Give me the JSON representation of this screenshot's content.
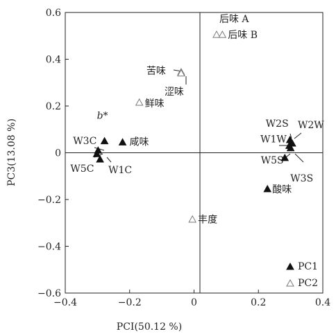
{
  "chart_data": {
    "type": "scatter",
    "xlabel": "PCI(50.12 %)",
    "ylabel": "PC3(13.08 %)",
    "xlim": [
      -0.4,
      0.4
    ],
    "ylim": [
      -0.6,
      0.6
    ],
    "xticks": [
      "−0.4",
      "−0.2",
      "0",
      "0.2",
      "0.4"
    ],
    "yticks": [
      "0.6",
      "0.4",
      "0.2",
      "0",
      "−0.2",
      "−0.4",
      "−0.6"
    ],
    "grid": false,
    "legend_position": "bottom-right",
    "series": [
      {
        "name": "PC1",
        "marker": "filled-triangle",
        "color": "#111111",
        "points": [
          {
            "label": "b*",
            "x": -0.278,
            "y": 0.05
          },
          {
            "label": "咸味",
            "x": -0.222,
            "y": 0.045
          },
          {
            "label": "W3C",
            "x": -0.298,
            "y": 0.01
          },
          {
            "label": "W5C",
            "x": -0.302,
            "y": -0.005
          },
          {
            "label": "W1C",
            "x": -0.292,
            "y": -0.028
          },
          {
            "label": "W2S",
            "x": 0.298,
            "y": 0.055
          },
          {
            "label": "W2W",
            "x": 0.305,
            "y": 0.04
          },
          {
            "label": "W1W",
            "x": 0.296,
            "y": 0.03
          },
          {
            "label": "W5S",
            "x": 0.3,
            "y": 0.02
          },
          {
            "label": "W3S",
            "x": 0.282,
            "y": -0.022
          },
          {
            "label": "酸味",
            "x": 0.228,
            "y": -0.155
          }
        ]
      },
      {
        "name": "PC2",
        "marker": "open-triangle",
        "color": "#777777",
        "points": [
          {
            "label": "后味 A",
            "x": 0.07,
            "y": 0.505
          },
          {
            "label": "后味 B",
            "x": 0.088,
            "y": 0.505
          },
          {
            "label": "苦味",
            "x": -0.04,
            "y": 0.345
          },
          {
            "label": "涩味",
            "x": -0.04,
            "y": 0.34
          },
          {
            "label": "鲜味",
            "x": -0.17,
            "y": 0.215
          },
          {
            "label": "丰度",
            "x": -0.005,
            "y": -0.285
          }
        ]
      }
    ]
  }
}
